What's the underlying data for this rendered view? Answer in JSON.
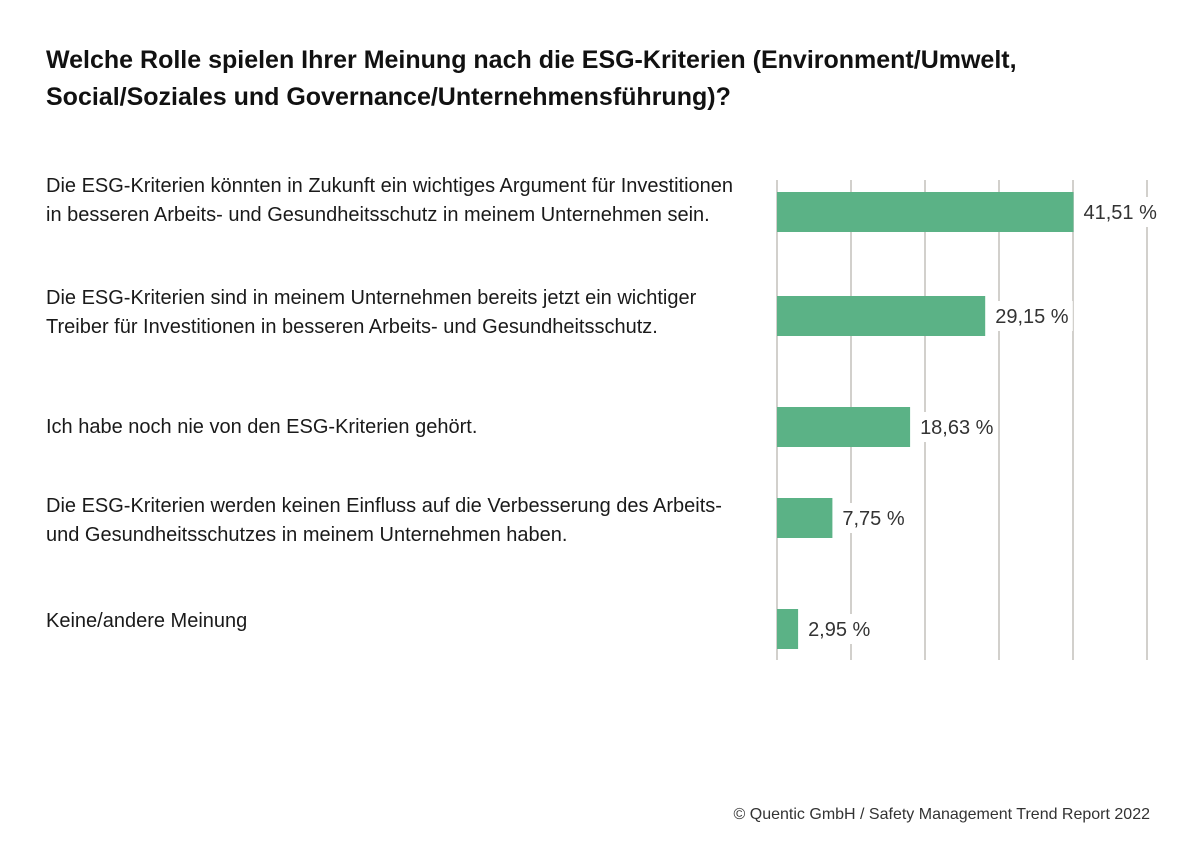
{
  "chart_data": {
    "type": "bar",
    "orientation": "horizontal",
    "title": "Welche Rolle spielen Ihrer Meinung nach die ESG-Kriterien (Environment/Umwelt, Social/Soziales und Governance/Unternehmensführung)?",
    "categories": [
      "Die ESG-Kriterien könnten in Zukunft ein wichtiges Argument für Investitionen in besseren Arbeits- und Gesundheitsschutz in meinem Unternehmen sein.",
      "Die ESG-Kriterien sind in meinem Unternehmen bereits jetzt ein wichtiger Treiber für Investitionen in besseren Arbeits- und Gesundheitsschutz.",
      "Ich habe noch nie von den ESG-Kriterien gehört.",
      "Die ESG-Kriterien werden keinen Einfluss auf die Verbesserung des Arbeits- und Gesundheitsschutzes in meinem Unternehmen haben.",
      "Keine/andere Meinung"
    ],
    "values": [
      41.51,
      29.15,
      18.63,
      7.75,
      2.95
    ],
    "value_labels": [
      "41,51 %",
      "29,15 %",
      "18,63 %",
      "7,75 %",
      "2,95 %"
    ],
    "xlim": [
      0,
      52.5
    ],
    "grid": true,
    "bar_color": "#5bb286",
    "grid_color": "#d2d0cc"
  },
  "footer": "© Quentic GmbH / Safety Management Trend Report 2022"
}
